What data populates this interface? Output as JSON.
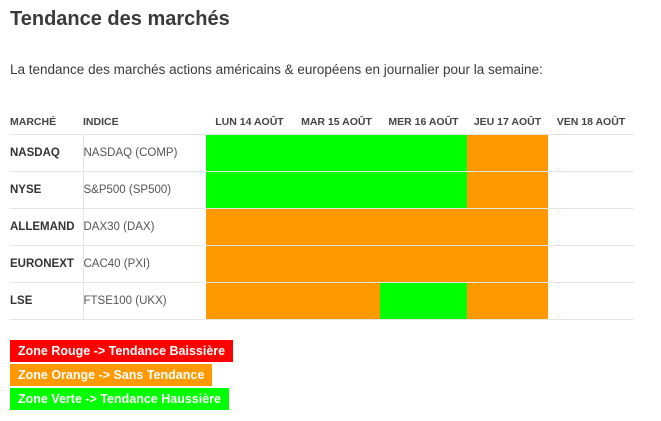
{
  "page": {
    "title": "Tendance des marchés",
    "subtitle": "La tendance des marchés actions américains & européens en journalier pour la semaine:"
  },
  "table": {
    "headers": {
      "market": "MARCHÉ",
      "index": "INDICE",
      "days": [
        "LUN 14 AOÛT",
        "MAR 15 AOÛT",
        "MER 16 AOÛT",
        "JEU 17 AOÛT",
        "VEN 18 AOÛT"
      ]
    },
    "rows": [
      {
        "market": "NASDAQ",
        "index": "NASDAQ (COMP)",
        "trend": [
          "green",
          "green",
          "green",
          "orange",
          "none"
        ]
      },
      {
        "market": "NYSE",
        "index": "S&P500 (SP500)",
        "trend": [
          "green",
          "green",
          "green",
          "orange",
          "none"
        ]
      },
      {
        "market": "ALLEMAND",
        "index": "DAX30 (DAX)",
        "trend": [
          "orange",
          "orange",
          "orange",
          "orange",
          "none"
        ]
      },
      {
        "market": "EURONEXT",
        "index": "CAC40 (PXI)",
        "trend": [
          "orange",
          "orange",
          "orange",
          "orange",
          "none"
        ]
      },
      {
        "market": "LSE",
        "index": "FTSE100 (UKX)",
        "trend": [
          "orange",
          "orange",
          "green",
          "orange",
          "none"
        ]
      }
    ]
  },
  "legend": [
    {
      "label": "Zone Rouge -> Tendance Baissière",
      "color": "#ff0000"
    },
    {
      "label": "Zone Orange -> Sans Tendance",
      "color": "#ff9900"
    },
    {
      "label": "Zone Verte -> Tendance Haussière",
      "color": "#00ff00"
    }
  ]
}
